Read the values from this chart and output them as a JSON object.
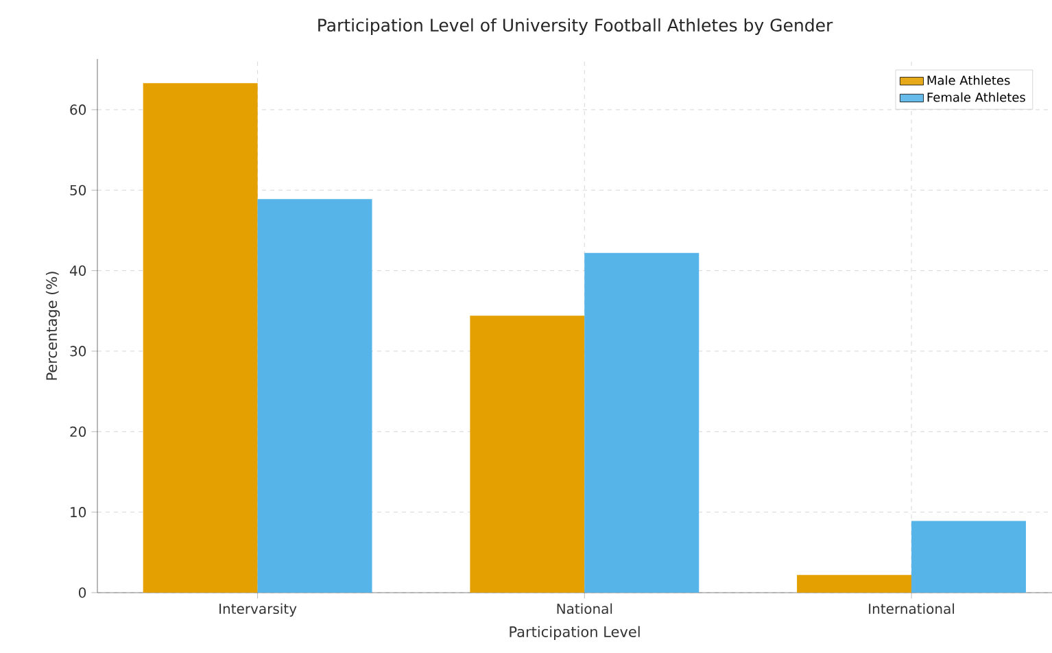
{
  "chart_data": {
    "type": "bar",
    "title": "Participation Level of University Football Athletes by Gender",
    "xlabel": "Participation Level",
    "ylabel": "Percentage (%)",
    "categories": [
      "Intervarsity",
      "National",
      "International"
    ],
    "series": [
      {
        "name": "Male Athletes",
        "color": "#e3a000",
        "values": [
          63.3,
          34.4,
          2.2
        ]
      },
      {
        "name": "Female Athletes",
        "color": "#56b4e9",
        "values": [
          48.9,
          42.2,
          8.9
        ]
      }
    ],
    "ylim": [
      0,
      66.3
    ],
    "yticks": [
      0,
      10,
      20,
      30,
      40,
      50,
      60
    ],
    "grid": true,
    "legend": "top right"
  }
}
